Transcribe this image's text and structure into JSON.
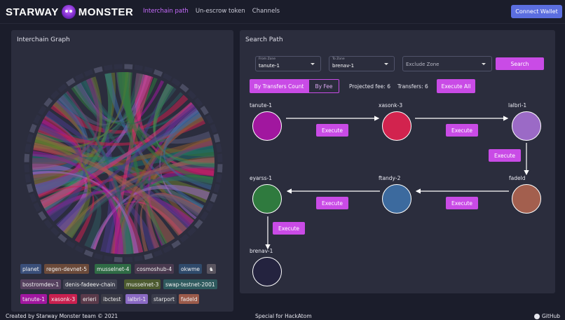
{
  "header": {
    "logo_left": "STARWAY",
    "logo_right": "MONSTER",
    "mascot_icon": "monster-icon",
    "nav": [
      {
        "label": "Interchain path",
        "active": true
      },
      {
        "label": "Un-escrow token",
        "active": false
      },
      {
        "label": "Channels",
        "active": false
      }
    ],
    "connect_label": "Connect Wallet"
  },
  "left_panel": {
    "title": "Interchain Graph",
    "tags": [
      {
        "label": "planet",
        "color": "#3a4f7a"
      },
      {
        "label": "regen-devnet-5",
        "color": "#6b4a3a"
      },
      {
        "label": "musselnet-4",
        "color": "#2f6b45"
      },
      {
        "label": "cosmoshub-4",
        "color": "#4a3a4f"
      },
      {
        "label": "okwme",
        "color": "#2f4a6b"
      },
      {
        "label": "♞",
        "color": "#5a5560"
      },
      {
        "label": "bostromdev-1",
        "color": "#55405e"
      },
      {
        "label": "denis-fadeev-chain",
        "color": "#3f4150"
      },
      {
        "label": "musselnet-3",
        "color": "#4c5a2f"
      },
      {
        "label": "swap-testnet-2001",
        "color": "#2f5a5e"
      },
      {
        "label": "tanute-1",
        "color": "#a1179f"
      },
      {
        "label": "xasonk-3",
        "color": "#c9204f"
      },
      {
        "label": "erieri",
        "color": "#5a3a4a"
      },
      {
        "label": "ibctest",
        "color": "#3a3a45"
      },
      {
        "label": "lalbri-1",
        "color": "#8a6ac4"
      },
      {
        "label": "starport",
        "color": "#3a3c4a"
      },
      {
        "label": "fadeld",
        "color": "#9a5a4a"
      }
    ]
  },
  "right_panel": {
    "title": "Search Path",
    "from_zone": {
      "label": "From Zone",
      "value": "tanute-1"
    },
    "to_zone": {
      "label": "To Zone",
      "value": "brenav-1"
    },
    "exclude_zone": {
      "placeholder": "Exclude Zone"
    },
    "search_label": "Search",
    "toggle_transfers": "By Transfers Count",
    "toggle_fee": "By Fee",
    "projected_fee": "Projected fee: 6",
    "transfers": "Transfers: 6",
    "execute_all": "Execute All",
    "execute_label": "Execute",
    "nodes": [
      {
        "name": "tanute-1",
        "color": "#a1179f"
      },
      {
        "name": "xasonk-3",
        "color": "#d2234e"
      },
      {
        "name": "lalbri-1",
        "color": "#9b6ac6"
      },
      {
        "name": "fadeld",
        "color": "#a35f4e"
      },
      {
        "name": "ftandy-2",
        "color": "#3c6a9e"
      },
      {
        "name": "eyarss-1",
        "color": "#2f7a3e"
      },
      {
        "name": "brenav-1",
        "color": "#24233f"
      }
    ]
  },
  "footer": {
    "left": "Created by Starway Monster team © 2021",
    "center": "Special for HackAtom",
    "right": "GitHub"
  }
}
